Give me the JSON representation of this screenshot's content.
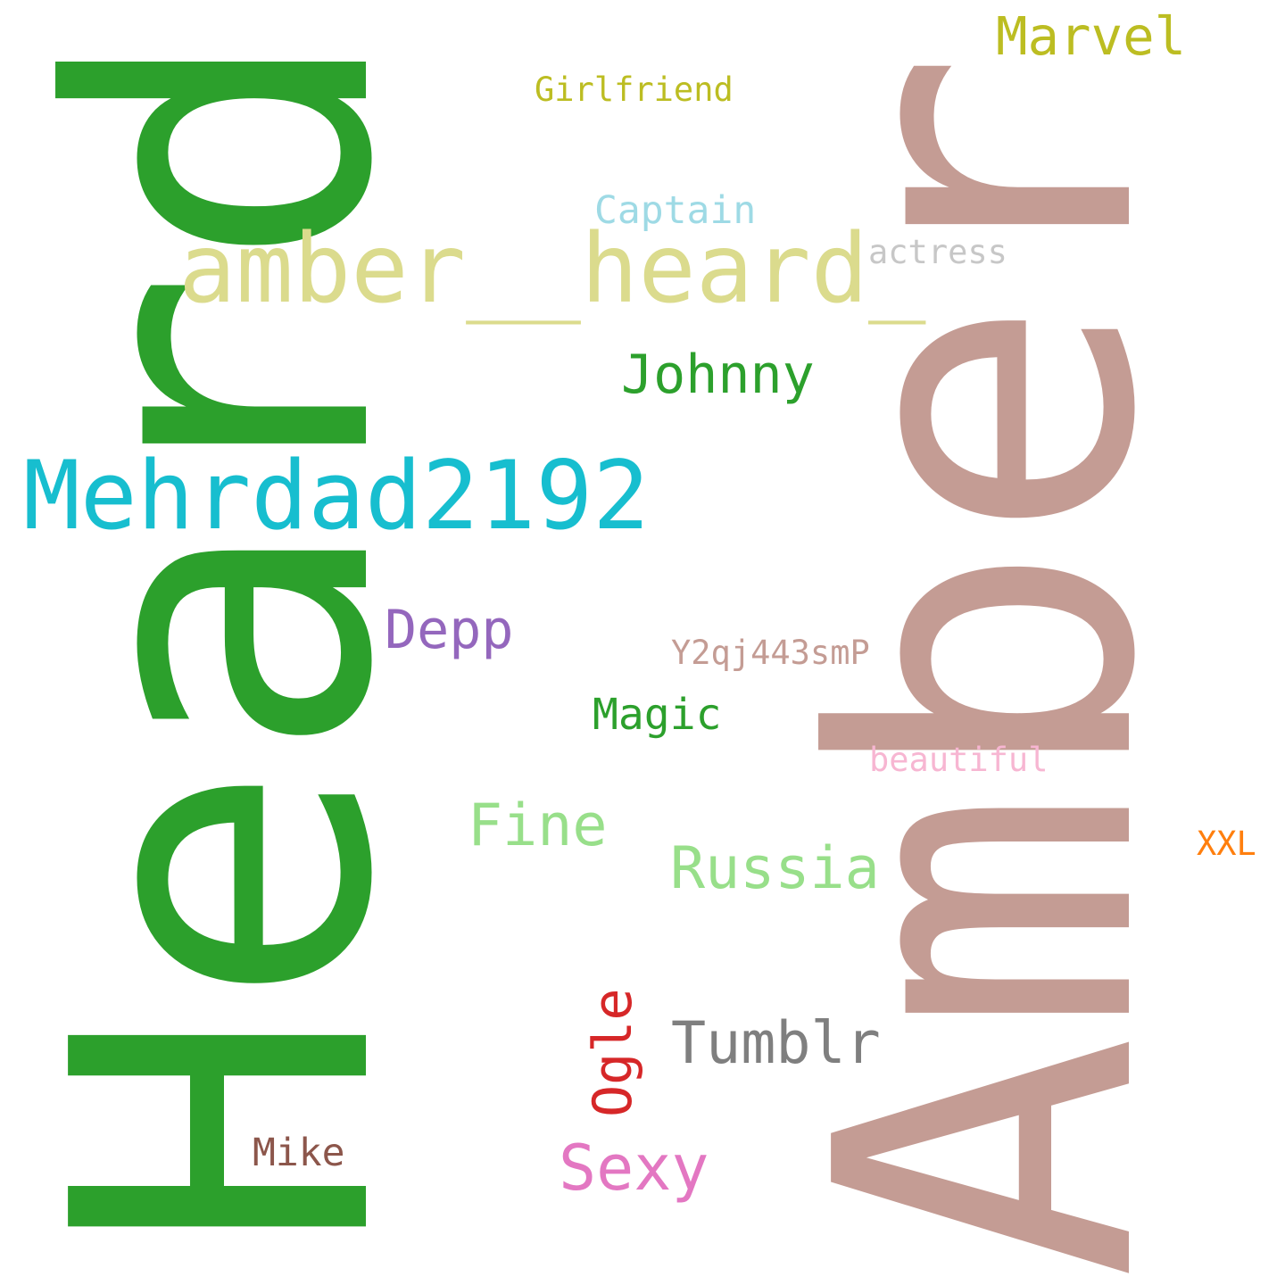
{
  "word_cloud": {
    "background": "#ffffff",
    "words": [
      {
        "text": "Heard",
        "color": "#2ca02c"
      },
      {
        "text": "Amber",
        "color": "#c49c94"
      },
      {
        "text": "amber__heard_",
        "color": "#dbdb8d"
      },
      {
        "text": "Mehrdad2192",
        "color": "#17becf"
      },
      {
        "text": "Marvel",
        "color": "#bcbd22"
      },
      {
        "text": "Girlfriend",
        "color": "#bcbd22"
      },
      {
        "text": "Captain",
        "color": "#9edae5"
      },
      {
        "text": "actress",
        "color": "#c7c7c7"
      },
      {
        "text": "Johnny",
        "color": "#2ca02c"
      },
      {
        "text": "Depp",
        "color": "#9467bd"
      },
      {
        "text": "Y2qj443smP",
        "color": "#c49c94"
      },
      {
        "text": "Magic",
        "color": "#2ca02c"
      },
      {
        "text": "beautiful",
        "color": "#f7b6d2"
      },
      {
        "text": "Fine",
        "color": "#98df8a"
      },
      {
        "text": "Russia",
        "color": "#98df8a"
      },
      {
        "text": "XXL",
        "color": "#ff7f0e"
      },
      {
        "text": "Ogle",
        "color": "#d62728"
      },
      {
        "text": "Tumblr",
        "color": "#7f7f7f"
      },
      {
        "text": "Mike",
        "color": "#8c564b"
      },
      {
        "text": "Sexy",
        "color": "#e377c2"
      }
    ]
  }
}
